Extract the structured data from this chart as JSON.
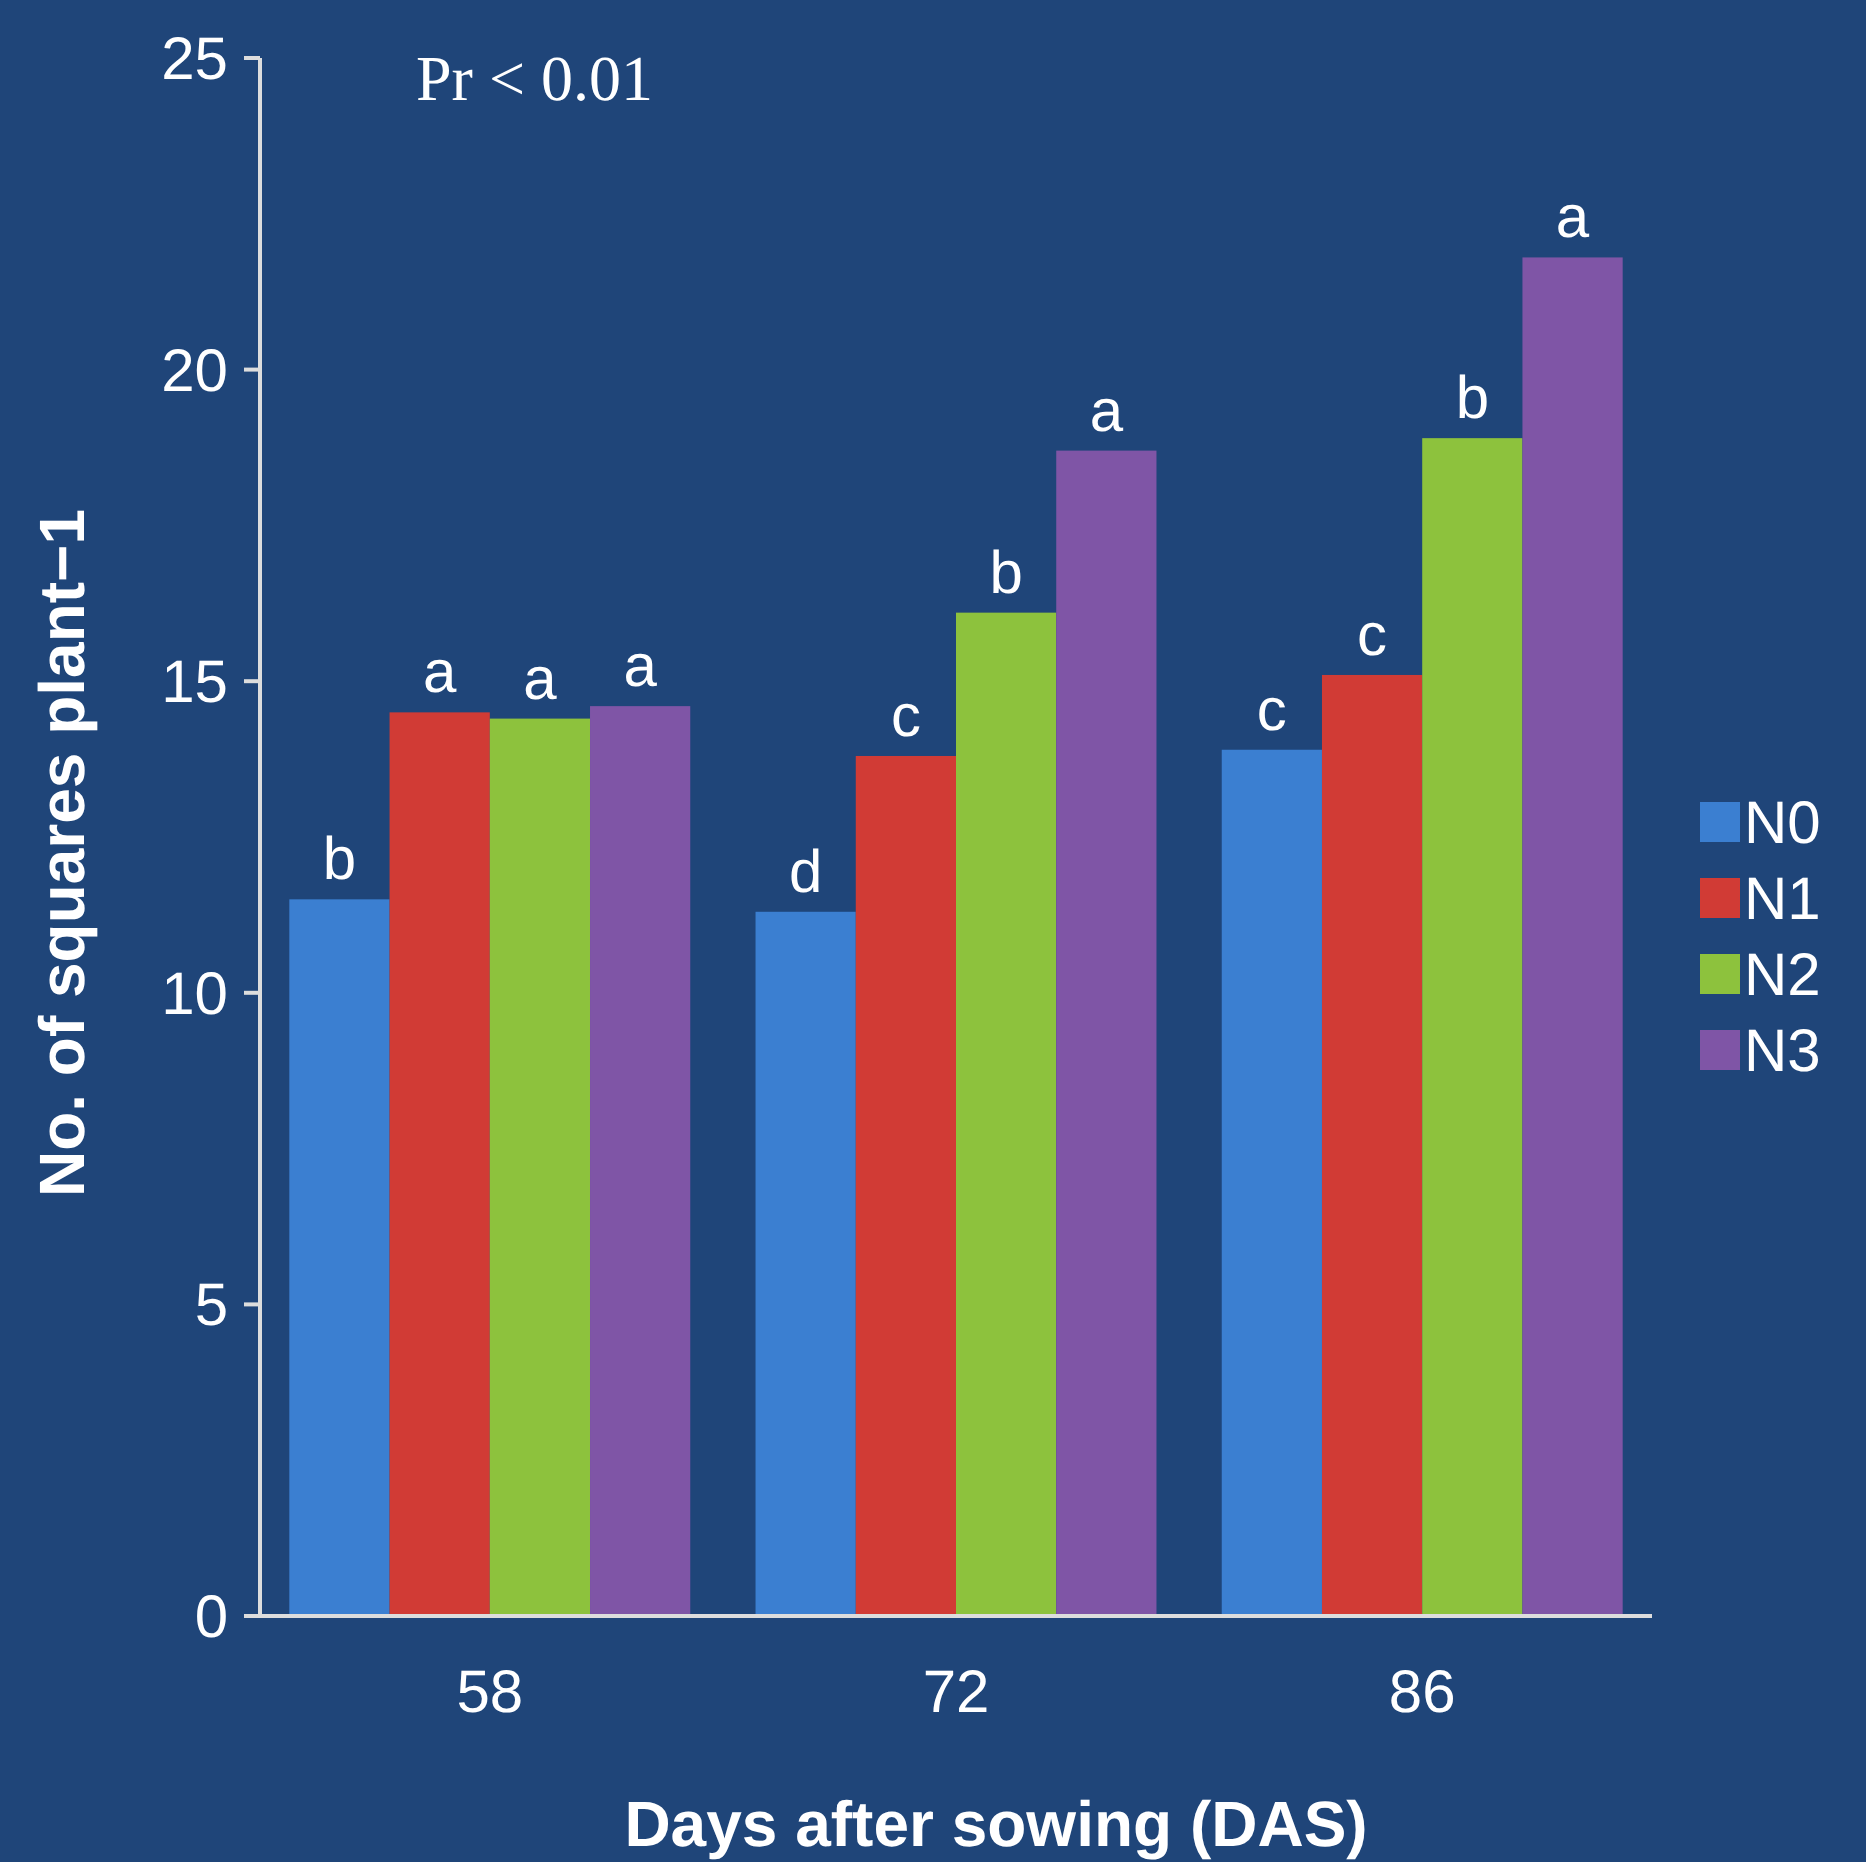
{
  "chart_data": {
    "type": "bar",
    "xlabel": "Days after sowing (DAS)",
    "ylabel": "No. of squares  plant−1",
    "categories": [
      "58",
      "72",
      "86"
    ],
    "series": [
      {
        "name": "N0",
        "color": "#3b7fd1",
        "values": [
          11.5,
          11.3,
          13.9
        ],
        "value_labels": [
          "b",
          "d",
          "c"
        ]
      },
      {
        "name": "N1",
        "color": "#d13b35",
        "values": [
          14.5,
          13.8,
          15.1
        ],
        "value_labels": [
          "a",
          "c",
          "c"
        ]
      },
      {
        "name": "N2",
        "color": "#8dc23d",
        "values": [
          14.4,
          16.1,
          18.9
        ],
        "value_labels": [
          "a",
          "b",
          "b"
        ]
      },
      {
        "name": "N3",
        "color": "#7f55a6",
        "values": [
          14.6,
          18.7,
          21.8
        ],
        "value_labels": [
          "a",
          "a",
          "a"
        ]
      }
    ],
    "ylim": [
      0,
      25
    ],
    "yticks": [
      0,
      5,
      10,
      15,
      20,
      25
    ],
    "grid": false,
    "legend": "right",
    "annotations": [
      "Pr < 0.01"
    ]
  }
}
